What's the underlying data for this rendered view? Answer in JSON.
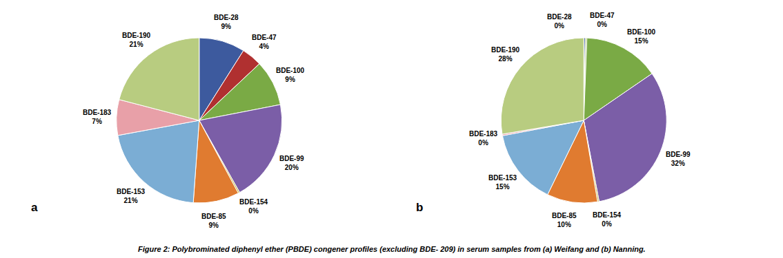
{
  "chart_data": [
    {
      "type": "pie",
      "title": "a",
      "categories": [
        "BDE-28",
        "BDE-47",
        "BDE-100",
        "BDE-99",
        "BDE-154",
        "BDE-85",
        "BDE-153",
        "BDE-183",
        "BDE-190"
      ],
      "values": [
        9,
        4,
        9,
        20,
        0.3,
        9,
        21,
        7,
        21
      ],
      "value_labels": [
        "9%",
        "4%",
        "9%",
        "20%",
        "0%",
        "9%",
        "21%",
        "7%",
        "21%"
      ],
      "colors": [
        "#3d5a9e",
        "#b03030",
        "#7aaa45",
        "#7b5ea7",
        "#c8b850",
        "#e07b30",
        "#7badd4",
        "#e8a0a8",
        "#b8cc80"
      ],
      "data_labels": true
    },
    {
      "type": "pie",
      "title": "b",
      "categories": [
        "BDE-28",
        "BDE-47",
        "BDE-100",
        "BDE-99",
        "BDE-154",
        "BDE-85",
        "BDE-153",
        "BDE-183",
        "BDE-190"
      ],
      "values": [
        0.3,
        0.3,
        15,
        32,
        0.3,
        10,
        15,
        0.3,
        28
      ],
      "value_labels": [
        "0%",
        "0%",
        "15%",
        "32%",
        "0%",
        "10%",
        "15%",
        "0%",
        "28%"
      ],
      "colors": [
        "#3d5a9e",
        "#b8cc80",
        "#7aaa45",
        "#7b5ea7",
        "#c8b850",
        "#e07b30",
        "#7badd4",
        "#e8a0a8",
        "#b8cc80"
      ],
      "data_labels": true
    }
  ],
  "caption": "Figure 2: Polybrominated diphenyl ether (PBDE) congener profiles (excluding BDE- 209) in serum samples from (a) Weifang and (b) Nanning."
}
